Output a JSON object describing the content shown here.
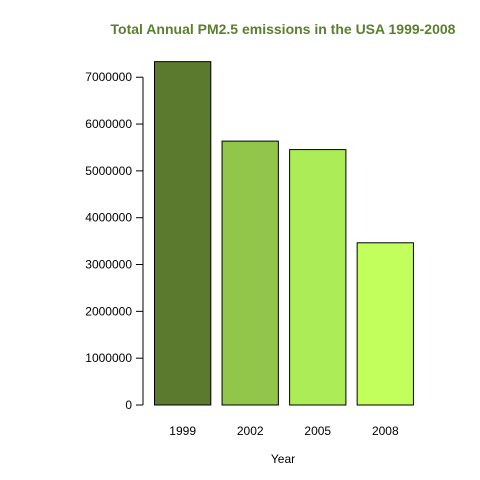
{
  "chart_data": {
    "type": "bar",
    "title": "Total Annual PM2.5 emissions in the USA 1999-2008",
    "title_color": "#5B7F2C",
    "xlabel": "Year",
    "ylabel": "",
    "categories": [
      "1999",
      "2002",
      "2005",
      "2008"
    ],
    "values": [
      7332967,
      5635780,
      5454703,
      3464206
    ],
    "colors": [
      "#5B7A2E",
      "#92C64B",
      "#ACEC57",
      "#C2FF5C"
    ],
    "ylim": [
      0,
      7400000
    ],
    "yticks": [
      0,
      1000000,
      2000000,
      3000000,
      4000000,
      5000000,
      6000000,
      7000000
    ],
    "ytick_labels": [
      "0",
      "1000000",
      "2000000",
      "3000000",
      "4000000",
      "5000000",
      "6000000",
      "7000000"
    ],
    "grid": false,
    "legend": "none"
  }
}
